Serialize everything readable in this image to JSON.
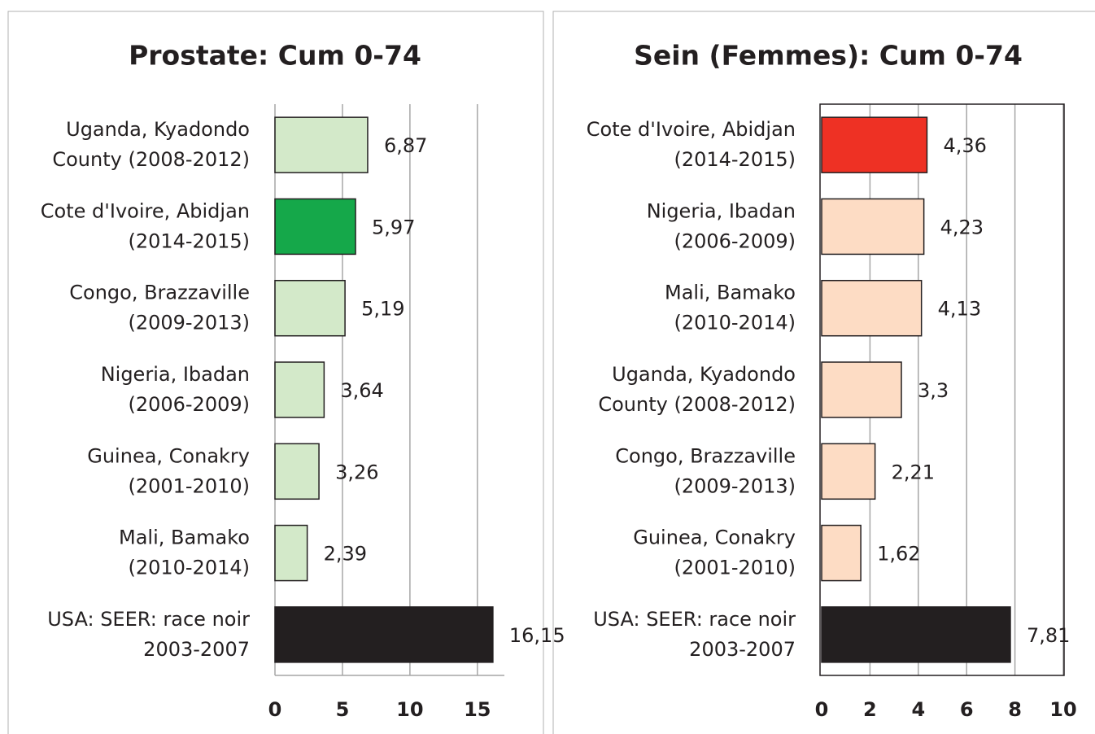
{
  "chart_data": [
    {
      "type": "bar",
      "orientation": "horizontal",
      "title": "Prostate: Cum 0-74",
      "categories": [
        [
          "Uganda, Kyadondo",
          "County (2008-2012)"
        ],
        [
          "Cote d'Ivoire, Abidjan",
          "(2014-2015)"
        ],
        [
          "Congo, Brazzaville",
          "(2009-2013)"
        ],
        [
          "Nigeria, Ibadan",
          "(2006-2009)"
        ],
        [
          "Guinea, Conakry",
          "(2001-2010)"
        ],
        [
          "Mali, Bamako",
          "(2010-2014)"
        ],
        [
          "USA: SEER: race noir",
          "2003-2007"
        ]
      ],
      "values": [
        6.87,
        5.97,
        5.19,
        3.64,
        3.26,
        2.39,
        16.15
      ],
      "value_labels": [
        "6,87",
        "5,97",
        "5,19",
        "3,64",
        "3,26",
        "2,39",
        "16,15"
      ],
      "colors": [
        "#d3e9c9",
        "#15a84a",
        "#d3e9c9",
        "#d3e9c9",
        "#d3e9c9",
        "#d3e9c9",
        "#231f20"
      ],
      "xlim": [
        0,
        17
      ],
      "xticks": [
        0,
        5,
        10,
        15
      ],
      "grid": true,
      "frame": false
    },
    {
      "type": "bar",
      "orientation": "horizontal",
      "title": "Sein (Femmes): Cum 0-74",
      "categories": [
        [
          "Cote d'Ivoire, Abidjan",
          "(2014-2015)"
        ],
        [
          "Nigeria, Ibadan",
          "(2006-2009)"
        ],
        [
          "Mali, Bamako",
          "(2010-2014)"
        ],
        [
          "Uganda, Kyadondo",
          "County (2008-2012)"
        ],
        [
          "Congo, Brazzaville",
          "(2009-2013)"
        ],
        [
          "Guinea, Conakry",
          "(2001-2010)"
        ],
        [
          "USA: SEER: race noir",
          "2003-2007"
        ]
      ],
      "values": [
        4.36,
        4.23,
        4.13,
        3.3,
        2.21,
        1.62,
        7.81
      ],
      "value_labels": [
        "4,36",
        "4,23",
        "4,13",
        "3,3",
        "2,21",
        "1,62",
        "7,81"
      ],
      "colors": [
        "#ee3124",
        "#fddcc4",
        "#fddcc4",
        "#fddcc4",
        "#fddcc4",
        "#fddcc4",
        "#231f20"
      ],
      "xlim": [
        0,
        10
      ],
      "xticks": [
        0,
        2,
        4,
        6,
        8,
        10
      ],
      "grid": true,
      "frame": true
    }
  ]
}
